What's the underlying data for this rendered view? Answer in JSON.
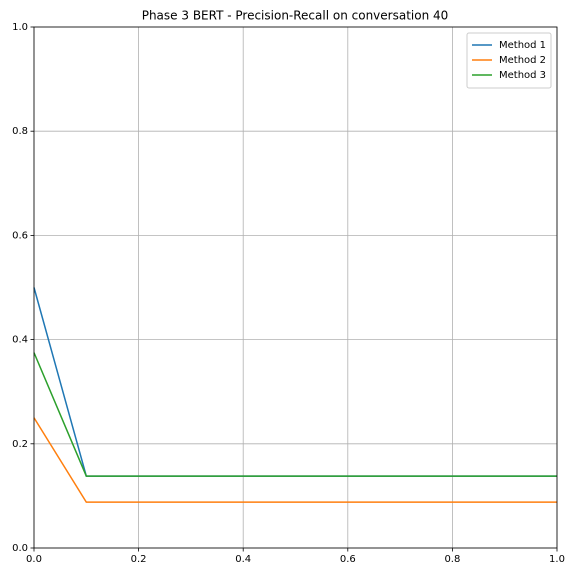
{
  "chart_data": {
    "type": "line",
    "title": "Phase 3 BERT - Precision-Recall on conversation 40",
    "x": [
      0,
      0.1,
      1
    ],
    "series": [
      {
        "name": "Method 1",
        "color": "#1f77b4",
        "values": [
          0.5,
          0.138,
          0.138
        ]
      },
      {
        "name": "Method 2",
        "color": "#ff7f0e",
        "values": [
          0.25,
          0.088,
          0.088
        ]
      },
      {
        "name": "Method 3",
        "color": "#2ca02c",
        "values": [
          0.375,
          0.138,
          0.138
        ]
      }
    ],
    "xlim": [
      0,
      1
    ],
    "ylim": [
      0,
      1
    ],
    "xticks": [
      {
        "value": 0,
        "label": "0.0"
      },
      0.2,
      0.4,
      0.6,
      0.8,
      {
        "value": 1,
        "label": "1.0"
      }
    ],
    "yticks": [
      {
        "value": 0,
        "label": "0.0"
      },
      0.2,
      0.4,
      0.6,
      0.8,
      {
        "value": 1,
        "label": "1.0"
      }
    ],
    "grid": true,
    "legend": "upper right"
  }
}
